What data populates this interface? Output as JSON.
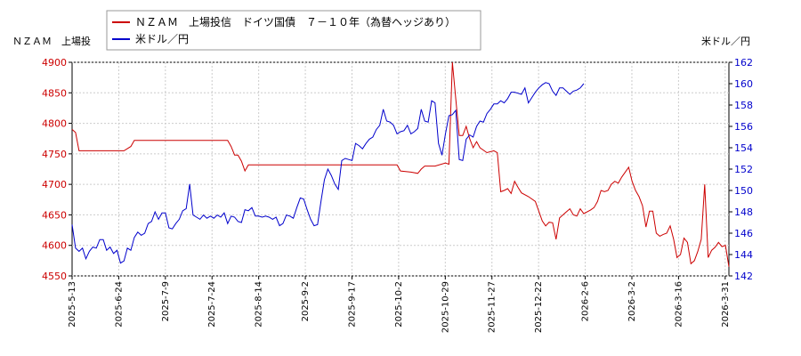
{
  "chart_data": {
    "type": "line",
    "left_axis_label": "ＮＺＡＭ　上場投",
    "right_axis_label": "米ドル／円",
    "legend": [
      {
        "name": "ＮＺＡＭ　上場投信　ドイツ国債　７－１０年（為替ヘッジあり）",
        "color": "#cc0000"
      },
      {
        "name": "米ドル／円",
        "color": "#0000cc"
      }
    ],
    "legend_position": "top-left",
    "grid": true,
    "x_tick_labels": [
      "2025-5-13",
      "2025-6-24",
      "2025-7-9",
      "2025-7-24",
      "2025-8-14",
      "2025-9-2",
      "2025-9-17",
      "2025-10-2",
      "2025-10-29",
      "2025-11-27",
      "2025-12-22",
      "2026-2-6",
      "2026-3-2",
      "2026-3-16",
      "2026-3-31"
    ],
    "y_left": {
      "min": 4550,
      "max": 4900,
      "ticks": [
        4550,
        4600,
        4650,
        4700,
        4750,
        4800,
        4850,
        4900
      ]
    },
    "y_right": {
      "min": 142,
      "max": 162,
      "ticks": [
        142,
        144,
        146,
        148,
        150,
        152,
        154,
        156,
        158,
        160,
        162
      ]
    },
    "series": [
      {
        "name": "ＮＺＡＭ　上場投信　ドイツ国債　７－１０年（為替ヘッジあり）",
        "axis": "left",
        "color": "#cc0000",
        "values": [
          [
            0,
            4790
          ],
          [
            1,
            4785
          ],
          [
            2,
            4755
          ],
          [
            5,
            4755
          ],
          [
            10,
            4755
          ],
          [
            15,
            4755
          ],
          [
            17,
            4762
          ],
          [
            18,
            4772
          ],
          [
            22,
            4772
          ],
          [
            30,
            4772
          ],
          [
            36,
            4772
          ],
          [
            40,
            4772
          ],
          [
            45,
            4772
          ],
          [
            46,
            4762
          ],
          [
            47,
            4748
          ],
          [
            48,
            4748
          ],
          [
            49,
            4738
          ],
          [
            50,
            4722
          ],
          [
            51,
            4732
          ],
          [
            60,
            4732
          ],
          [
            70,
            4732
          ],
          [
            80,
            4732
          ],
          [
            85,
            4732
          ],
          [
            90,
            4732
          ],
          [
            94,
            4732
          ],
          [
            95,
            4722
          ],
          [
            98,
            4720
          ],
          [
            100,
            4718
          ],
          [
            101,
            4725
          ],
          [
            102,
            4730
          ],
          [
            105,
            4730
          ],
          [
            108,
            4735
          ],
          [
            109,
            4733
          ],
          [
            110,
            4900
          ],
          [
            111,
            4840
          ],
          [
            112,
            4780
          ],
          [
            113,
            4780
          ],
          [
            114,
            4795
          ],
          [
            115,
            4775
          ],
          [
            116,
            4760
          ],
          [
            117,
            4770
          ],
          [
            118,
            4760
          ],
          [
            120,
            4752
          ],
          [
            122,
            4755
          ],
          [
            123,
            4752
          ],
          [
            124,
            4688
          ],
          [
            125,
            4690
          ],
          [
            126,
            4693
          ],
          [
            127,
            4685
          ],
          [
            128,
            4705
          ],
          [
            129,
            4695
          ],
          [
            130,
            4686
          ],
          [
            132,
            4680
          ],
          [
            134,
            4672
          ],
          [
            136,
            4640
          ],
          [
            137,
            4632
          ],
          [
            138,
            4638
          ],
          [
            139,
            4637
          ],
          [
            140,
            4610
          ],
          [
            141,
            4645
          ],
          [
            142,
            4650
          ],
          [
            143,
            4655
          ],
          [
            144,
            4660
          ],
          [
            145,
            4650
          ],
          [
            146,
            4648
          ],
          [
            147,
            4660
          ],
          [
            148,
            4652
          ],
          [
            150,
            4658
          ],
          [
            151,
            4662
          ],
          [
            152,
            4672
          ],
          [
            153,
            4690
          ],
          [
            154,
            4688
          ],
          [
            155,
            4690
          ],
          [
            156,
            4700
          ],
          [
            157,
            4705
          ],
          [
            158,
            4702
          ],
          [
            159,
            4712
          ],
          [
            160,
            4720
          ],
          [
            161,
            4728
          ],
          [
            162,
            4705
          ],
          [
            163,
            4690
          ],
          [
            164,
            4680
          ],
          [
            165,
            4665
          ],
          [
            166,
            4630
          ],
          [
            167,
            4656
          ],
          [
            168,
            4656
          ],
          [
            169,
            4620
          ],
          [
            170,
            4615
          ],
          [
            171,
            4618
          ],
          [
            172,
            4620
          ],
          [
            173,
            4632
          ],
          [
            174,
            4610
          ],
          [
            175,
            4580
          ],
          [
            176,
            4585
          ],
          [
            177,
            4612
          ],
          [
            178,
            4605
          ],
          [
            179,
            4570
          ],
          [
            180,
            4575
          ],
          [
            181,
            4590
          ],
          [
            182,
            4610
          ],
          [
            183,
            4700
          ],
          [
            184,
            4580
          ],
          [
            185,
            4592
          ],
          [
            186,
            4597
          ],
          [
            187,
            4605
          ],
          [
            188,
            4598
          ],
          [
            189,
            4600
          ],
          [
            190,
            4565
          ]
        ]
      },
      {
        "name": "米ドル／円",
        "axis": "right",
        "color": "#0000cc",
        "values": [
          [
            0,
            146.8
          ],
          [
            1,
            144.6
          ],
          [
            2,
            144.3
          ],
          [
            3,
            144.6
          ],
          [
            4,
            143.6
          ],
          [
            5,
            144.3
          ],
          [
            6,
            144.7
          ],
          [
            7,
            144.6
          ],
          [
            8,
            145.4
          ],
          [
            9,
            145.4
          ],
          [
            10,
            144.4
          ],
          [
            11,
            144.7
          ],
          [
            12,
            144.1
          ],
          [
            13,
            144.4
          ],
          [
            14,
            143.2
          ],
          [
            15,
            143.4
          ],
          [
            16,
            144.6
          ],
          [
            17,
            144.4
          ],
          [
            18,
            145.6
          ],
          [
            19,
            146.1
          ],
          [
            20,
            145.8
          ],
          [
            21,
            146.0
          ],
          [
            22,
            146.9
          ],
          [
            23,
            147.1
          ],
          [
            24,
            148.0
          ],
          [
            25,
            147.3
          ],
          [
            26,
            147.9
          ],
          [
            27,
            147.9
          ],
          [
            28,
            146.5
          ],
          [
            29,
            146.4
          ],
          [
            30,
            146.9
          ],
          [
            31,
            147.3
          ],
          [
            32,
            148.1
          ],
          [
            33,
            148.3
          ],
          [
            34,
            150.6
          ],
          [
            35,
            147.7
          ],
          [
            36,
            147.5
          ],
          [
            37,
            147.3
          ],
          [
            38,
            147.7
          ],
          [
            39,
            147.4
          ],
          [
            40,
            147.6
          ],
          [
            41,
            147.4
          ],
          [
            42,
            147.7
          ],
          [
            43,
            147.5
          ],
          [
            44,
            147.9
          ],
          [
            45,
            146.9
          ],
          [
            46,
            147.6
          ],
          [
            47,
            147.5
          ],
          [
            48,
            147.1
          ],
          [
            49,
            147.0
          ],
          [
            50,
            148.2
          ],
          [
            51,
            148.1
          ],
          [
            52,
            148.4
          ],
          [
            53,
            147.6
          ],
          [
            54,
            147.6
          ],
          [
            55,
            147.5
          ],
          [
            56,
            147.6
          ],
          [
            57,
            147.5
          ],
          [
            58,
            147.3
          ],
          [
            59,
            147.5
          ],
          [
            60,
            146.7
          ],
          [
            61,
            146.9
          ],
          [
            62,
            147.7
          ],
          [
            63,
            147.6
          ],
          [
            64,
            147.4
          ],
          [
            65,
            148.4
          ],
          [
            66,
            149.3
          ],
          [
            67,
            149.2
          ],
          [
            68,
            148.2
          ],
          [
            69,
            147.3
          ],
          [
            70,
            146.7
          ],
          [
            71,
            146.8
          ],
          [
            72,
            149.0
          ],
          [
            73,
            151.0
          ],
          [
            74,
            152.0
          ],
          [
            75,
            151.4
          ],
          [
            76,
            150.6
          ],
          [
            77,
            150.1
          ],
          [
            78,
            152.8
          ],
          [
            79,
            153.0
          ],
          [
            80,
            152.9
          ],
          [
            81,
            152.8
          ],
          [
            82,
            154.4
          ],
          [
            83,
            154.2
          ],
          [
            84,
            153.9
          ],
          [
            85,
            154.4
          ],
          [
            86,
            154.8
          ],
          [
            87,
            155.0
          ],
          [
            88,
            155.7
          ],
          [
            89,
            156.1
          ],
          [
            90,
            157.6
          ],
          [
            91,
            156.5
          ],
          [
            92,
            156.4
          ],
          [
            93,
            156.1
          ],
          [
            94,
            155.3
          ],
          [
            95,
            155.5
          ],
          [
            96,
            155.6
          ],
          [
            97,
            156.1
          ],
          [
            98,
            155.3
          ],
          [
            99,
            155.5
          ],
          [
            100,
            155.8
          ],
          [
            101,
            157.6
          ],
          [
            102,
            156.5
          ],
          [
            103,
            156.4
          ],
          [
            104,
            158.4
          ],
          [
            105,
            158.2
          ],
          [
            106,
            154.4
          ],
          [
            107,
            153.3
          ],
          [
            108,
            155.3
          ],
          [
            109,
            157.0
          ],
          [
            110,
            157.1
          ],
          [
            111,
            157.5
          ],
          [
            112,
            152.9
          ],
          [
            113,
            152.8
          ],
          [
            114,
            154.8
          ],
          [
            115,
            155.2
          ],
          [
            116,
            155.0
          ],
          [
            117,
            156.0
          ],
          [
            118,
            156.5
          ],
          [
            119,
            156.4
          ],
          [
            120,
            157.2
          ],
          [
            121,
            157.6
          ],
          [
            122,
            158.1
          ],
          [
            123,
            158.1
          ],
          [
            124,
            158.4
          ],
          [
            125,
            158.2
          ],
          [
            126,
            158.6
          ],
          [
            127,
            159.2
          ],
          [
            128,
            159.2
          ],
          [
            129,
            159.1
          ],
          [
            130,
            159.0
          ],
          [
            131,
            159.6
          ],
          [
            132,
            158.2
          ],
          [
            133,
            158.7
          ],
          [
            134,
            159.2
          ],
          [
            135,
            159.6
          ],
          [
            136,
            159.9
          ],
          [
            137,
            160.1
          ],
          [
            138,
            160.0
          ],
          [
            139,
            159.3
          ],
          [
            140,
            158.9
          ],
          [
            141,
            159.6
          ],
          [
            142,
            159.6
          ],
          [
            143,
            159.3
          ],
          [
            144,
            159.0
          ],
          [
            145,
            159.3
          ],
          [
            146,
            159.4
          ],
          [
            147,
            159.6
          ],
          [
            148,
            160.0
          ]
        ]
      }
    ]
  }
}
